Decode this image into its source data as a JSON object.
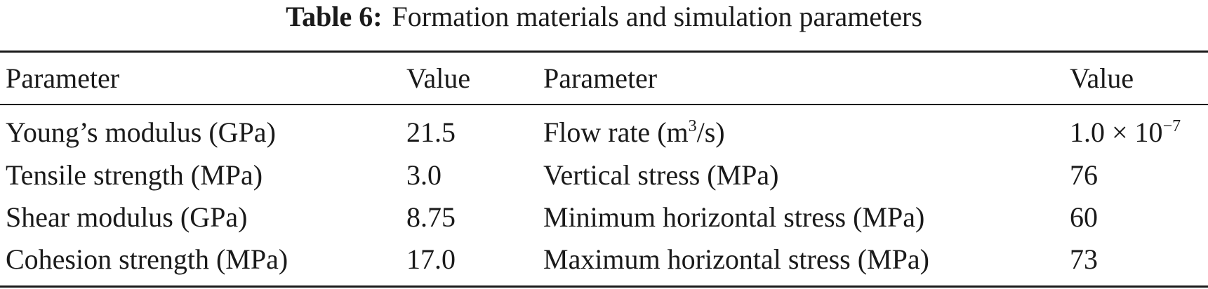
{
  "caption": {
    "label": "Table 6:",
    "text": "Formation materials and simulation parameters"
  },
  "table": {
    "headers": [
      "Parameter",
      "Value",
      "Parameter",
      "Value"
    ],
    "rows": [
      {
        "param_left": "Young’s modulus (GPa)",
        "value_left": "21.5",
        "param_right_before": "Flow rate (m",
        "param_right_sup": "3",
        "param_right_after": "/s)",
        "value_right_base": "1.0 × 10",
        "value_right_sup": "−7"
      },
      {
        "param_left": "Tensile strength (MPa)",
        "value_left": "3.0",
        "param_right": "Vertical stress (MPa)",
        "value_right": "76"
      },
      {
        "param_left": "Shear modulus (GPa)",
        "value_left": "8.75",
        "param_right": "Minimum horizontal stress (MPa)",
        "value_right": "60"
      },
      {
        "param_left": "Cohesion strength (MPa)",
        "value_left": "17.0",
        "param_right": "Maximum horizontal stress (MPa)",
        "value_right": "73"
      }
    ]
  }
}
